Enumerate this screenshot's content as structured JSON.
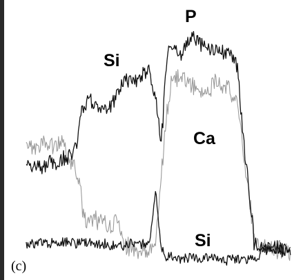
{
  "chart_data": {
    "type": "line",
    "title": "",
    "xlabel": "",
    "ylabel": "",
    "panel_label": "(c)",
    "series_labels": {
      "p": "P",
      "si_upper": "Si",
      "ca": "Ca",
      "si_lower": "Si"
    },
    "colors": {
      "dark_trace": "#111111",
      "light_trace": "#9a9a9a",
      "left_edge": "#2a2a2a"
    },
    "series": [
      {
        "key": "si_p_dark",
        "name": "",
        "color": "#111111",
        "anchors": [
          [
            0,
            240
          ],
          [
            25,
            240
          ],
          [
            34,
            232
          ],
          [
            40,
            238
          ],
          [
            55,
            230
          ],
          [
            68,
            226
          ],
          [
            74,
            200
          ],
          [
            80,
            165
          ],
          [
            90,
            145
          ],
          [
            100,
            152
          ],
          [
            115,
            160
          ],
          [
            125,
            150
          ],
          [
            135,
            125
          ],
          [
            145,
            115
          ],
          [
            155,
            120
          ],
          [
            170,
            106
          ],
          [
            180,
            103
          ],
          [
            182,
            118
          ],
          [
            188,
            145
          ],
          [
            193,
            190
          ],
          [
            196,
            200
          ],
          [
            199,
            160
          ],
          [
            202,
            100
          ],
          [
            207,
            65
          ],
          [
            213,
            68
          ],
          [
            220,
            80
          ],
          [
            230,
            72
          ],
          [
            238,
            58
          ],
          [
            246,
            58
          ],
          [
            256,
            70
          ],
          [
            270,
            72
          ],
          [
            285,
            75
          ],
          [
            298,
            82
          ],
          [
            306,
            95
          ],
          [
            310,
            145
          ],
          [
            314,
            200
          ],
          [
            318,
            235
          ],
          [
            322,
            265
          ],
          [
            325,
            305
          ],
          [
            328,
            320
          ],
          [
            330,
            352
          ],
          [
            335,
            355
          ],
          [
            350,
            360
          ],
          [
            383,
            364
          ]
        ],
        "noise": 10
      },
      {
        "key": "ca_light",
        "name": "",
        "color": "#9a9a9a",
        "anchors": [
          [
            0,
            210
          ],
          [
            15,
            218
          ],
          [
            25,
            208
          ],
          [
            38,
            212
          ],
          [
            48,
            205
          ],
          [
            55,
            212
          ],
          [
            62,
            232
          ],
          [
            70,
            240
          ],
          [
            77,
            265
          ],
          [
            82,
            310
          ],
          [
            88,
            320
          ],
          [
            95,
            322
          ],
          [
            105,
            318
          ],
          [
            115,
            325
          ],
          [
            125,
            325
          ],
          [
            133,
            315
          ],
          [
            138,
            340
          ],
          [
            144,
            355
          ],
          [
            153,
            362
          ],
          [
            165,
            362
          ],
          [
            183,
            362
          ],
          [
            188,
            342
          ],
          [
            193,
            290
          ],
          [
            197,
            238
          ],
          [
            203,
            170
          ],
          [
            210,
            118
          ],
          [
            220,
            110
          ],
          [
            235,
            118
          ],
          [
            250,
            130
          ],
          [
            262,
            135
          ],
          [
            275,
            120
          ],
          [
            290,
            125
          ],
          [
            300,
            140
          ],
          [
            306,
            155
          ],
          [
            312,
            200
          ],
          [
            318,
            250
          ],
          [
            325,
            300
          ],
          [
            330,
            340
          ],
          [
            338,
            355
          ],
          [
            360,
            362
          ],
          [
            383,
            364
          ]
        ],
        "noise": 12
      },
      {
        "key": "si_lower_dark",
        "name": "",
        "color": "#111111",
        "anchors": [
          [
            0,
            355
          ],
          [
            20,
            352
          ],
          [
            40,
            352
          ],
          [
            60,
            350
          ],
          [
            80,
            352
          ],
          [
            100,
            353
          ],
          [
            120,
            355
          ],
          [
            140,
            355
          ],
          [
            165,
            355
          ],
          [
            178,
            352
          ],
          [
            182,
            330
          ],
          [
            185,
            300
          ],
          [
            188,
            275
          ],
          [
            191,
            310
          ],
          [
            194,
            350
          ],
          [
            200,
            370
          ],
          [
            215,
            374
          ],
          [
            245,
            375
          ],
          [
            280,
            376
          ],
          [
            320,
            376
          ],
          [
            337,
            376
          ],
          [
            343,
            362
          ],
          [
            350,
            360
          ],
          [
            383,
            362
          ]
        ],
        "noise": 7
      }
    ]
  }
}
